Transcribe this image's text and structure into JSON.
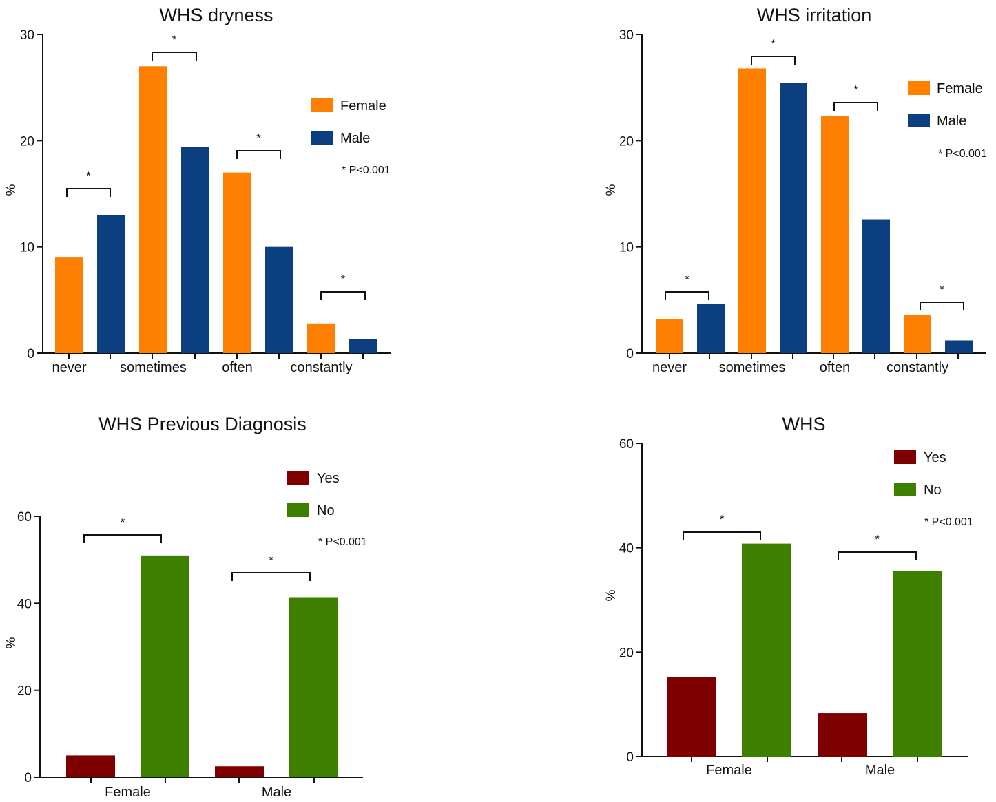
{
  "chart_data": [
    {
      "type": "bar",
      "title": "WHS dryness",
      "ylabel": "%",
      "ylim": [
        0,
        30
      ],
      "yticks": [
        0,
        10,
        20,
        30
      ],
      "categories": [
        "never",
        "sometimes",
        "often",
        "constantly"
      ],
      "series": [
        {
          "name": "Female",
          "color": "#FF8000",
          "values": [
            9,
            27,
            17,
            2.8
          ]
        },
        {
          "name": "Male",
          "color": "#0B3F7F",
          "values": [
            13,
            19.4,
            10,
            1.3
          ]
        }
      ],
      "significance_marker": "*",
      "note": "* P<0.001",
      "legend_position": "right"
    },
    {
      "type": "bar",
      "title": "WHS irritation",
      "ylabel": "%",
      "ylim": [
        0,
        30
      ],
      "yticks": [
        0,
        10,
        20,
        30
      ],
      "categories": [
        "never",
        "sometimes",
        "often",
        "constantly"
      ],
      "series": [
        {
          "name": "Female",
          "color": "#FF8000",
          "values": [
            3.2,
            26.8,
            22.3,
            3.6
          ]
        },
        {
          "name": "Male",
          "color": "#0B3F7F",
          "values": [
            4.6,
            25.4,
            12.6,
            1.2
          ]
        }
      ],
      "significance_marker": "*",
      "note": "* P<0.001",
      "legend_position": "top-right"
    },
    {
      "type": "bar",
      "title": "WHS Previous Diagnosis",
      "ylabel": "%",
      "ylim": [
        0,
        60
      ],
      "yticks": [
        0,
        20,
        40,
        60
      ],
      "categories": [
        "Female",
        "Male"
      ],
      "series": [
        {
          "name": "Yes",
          "color": "#7F0000",
          "values": [
            5,
            2.5
          ]
        },
        {
          "name": "No",
          "color": "#3F7F00",
          "values": [
            51,
            41.4
          ]
        }
      ],
      "significance_marker": "*",
      "note": "* P<0.001",
      "legend_position": "top-right"
    },
    {
      "type": "bar",
      "title": "WHS",
      "ylabel": "%",
      "ylim": [
        0,
        60
      ],
      "yticks": [
        0,
        20,
        40,
        60
      ],
      "categories": [
        "Female",
        "Male"
      ],
      "series": [
        {
          "name": "Yes",
          "color": "#7F0000",
          "values": [
            15.2,
            8.3
          ]
        },
        {
          "name": "No",
          "color": "#3F7F00",
          "values": [
            40.8,
            35.6
          ]
        }
      ],
      "significance_marker": "*",
      "note": "* P<0.001",
      "legend_position": "top-right"
    }
  ]
}
